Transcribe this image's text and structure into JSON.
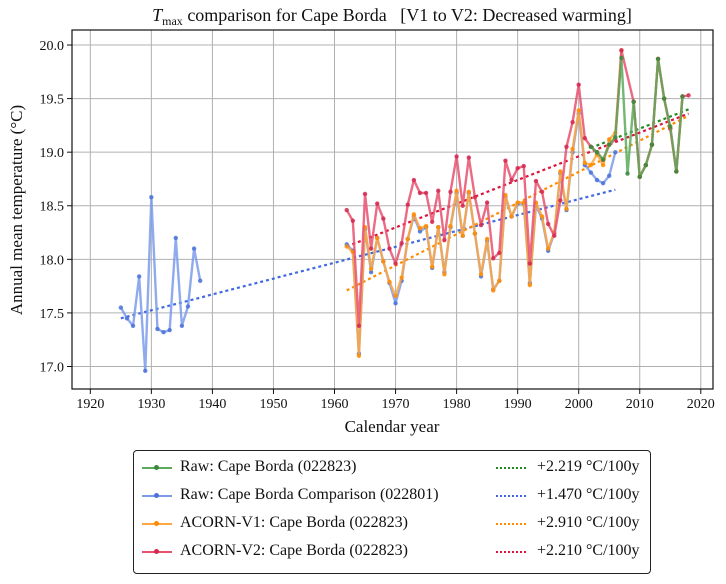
{
  "chart_data": {
    "type": "line",
    "title": {
      "T": "T",
      "sub": "max",
      "rest": " comparison for Cape Borda   [V1 to V2: Decreased warming]"
    },
    "xlabel": "Calendar year",
    "ylabel": "Annual mean temperature (°C)",
    "xlim": [
      1917,
      2022
    ],
    "ylim": [
      16.79,
      20.14
    ],
    "xticks": [
      1920,
      1930,
      1940,
      1950,
      1960,
      1970,
      1980,
      1990,
      2000,
      2010,
      2020
    ],
    "yticks": [
      17.0,
      17.5,
      18.0,
      18.5,
      19.0,
      19.5,
      20.0
    ],
    "ytick_labels": [
      "17.0",
      "17.5",
      "18.0",
      "18.5",
      "19.0",
      "19.5",
      "20.0"
    ],
    "grid": true,
    "legend_position": "below",
    "series": [
      {
        "name": "Raw: Cape Borda (022823)",
        "color": "#5aaa5a",
        "x": [
          2002,
          2003,
          2004,
          2005,
          2006,
          2007,
          2008,
          2009,
          2010,
          2011,
          2012,
          2013,
          2014,
          2015,
          2016,
          2017
        ],
        "y": [
          19.05,
          19.0,
          18.93,
          19.07,
          19.14,
          19.88,
          18.8,
          19.47,
          18.77,
          18.88,
          19.07,
          19.87,
          19.5,
          19.24,
          18.82,
          19.52
        ]
      },
      {
        "name": "Raw: Cape Borda Comparison (022801)",
        "color": "#7b9ceb",
        "x": [
          1925,
          1926,
          1927,
          1928,
          1929,
          1930,
          1931,
          1932,
          1933,
          1934,
          1935,
          1936,
          1937,
          1938,
          null,
          1962,
          1963,
          1964,
          1965,
          1966,
          1967,
          1968,
          1969,
          1970,
          1971,
          1972,
          1973,
          1974,
          1975,
          1976,
          1977,
          1978,
          1979,
          1980,
          1981,
          1982,
          1983,
          1984,
          1985,
          1986,
          1987,
          1988,
          1989,
          1990,
          1991,
          1992,
          1993,
          1994,
          1995,
          1996,
          1997,
          1998,
          1999,
          2000,
          2001,
          2002,
          2003,
          2004,
          2005,
          2006
        ],
        "y": [
          17.55,
          17.45,
          17.38,
          17.84,
          16.96,
          18.58,
          17.35,
          17.32,
          17.34,
          18.2,
          17.38,
          17.56,
          18.1,
          17.8,
          null,
          18.14,
          18.08,
          17.12,
          18.28,
          17.88,
          18.2,
          17.98,
          17.78,
          17.59,
          17.8,
          18.19,
          18.4,
          18.26,
          18.3,
          17.92,
          18.3,
          17.88,
          18.3,
          18.62,
          18.22,
          18.62,
          18.24,
          17.84,
          18.17,
          17.72,
          17.8,
          18.58,
          18.4,
          18.52,
          18.52,
          17.78,
          18.5,
          18.38,
          18.08,
          18.24,
          18.8,
          18.46,
          19.0,
          19.36,
          18.88,
          18.81,
          18.74,
          18.71,
          18.78,
          19.0
        ]
      },
      {
        "name": "ACORN-V1: Cape Borda (022823)",
        "color": "#ffa640",
        "x": [
          1962,
          1963,
          1964,
          1965,
          1966,
          1967,
          1968,
          1969,
          1970,
          1971,
          1972,
          1973,
          1974,
          1975,
          1976,
          1977,
          1978,
          1979,
          1980,
          1981,
          1982,
          1983,
          1984,
          1985,
          1986,
          1987,
          1988,
          1989,
          1990,
          1991,
          1992,
          1993,
          1994,
          1995,
          1996,
          1997,
          1998,
          1999,
          2000,
          2001,
          2002,
          2003,
          2004,
          2005,
          2006,
          2007,
          2008,
          2009,
          2010,
          2011,
          2012,
          2013,
          2014,
          2015,
          2016,
          2017
        ],
        "y": [
          18.12,
          18.07,
          17.1,
          18.3,
          17.91,
          18.2,
          17.98,
          17.79,
          17.66,
          17.83,
          18.19,
          18.42,
          18.29,
          18.31,
          17.93,
          18.3,
          17.86,
          18.31,
          18.64,
          18.22,
          18.63,
          18.24,
          17.86,
          18.19,
          17.71,
          17.8,
          18.6,
          18.4,
          18.53,
          18.53,
          17.76,
          18.53,
          18.4,
          18.1,
          18.25,
          18.82,
          18.47,
          19.03,
          19.39,
          18.9,
          18.88,
          18.98,
          18.88,
          19.12,
          19.18,
          19.95,
          null,
          19.47,
          18.77,
          18.88,
          19.07,
          19.87,
          19.5,
          19.22,
          18.82,
          19.52
        ]
      },
      {
        "name": "ACORN-V2: Cape Borda (022823)",
        "color": "#e8506e",
        "x": [
          1962,
          1963,
          1964,
          1965,
          1966,
          1967,
          1968,
          1969,
          1970,
          1971,
          1972,
          1973,
          1974,
          1975,
          1976,
          1977,
          1978,
          1979,
          1980,
          1981,
          1982,
          1983,
          1984,
          1985,
          1986,
          1987,
          1988,
          1989,
          1990,
          1991,
          1992,
          1993,
          1994,
          1995,
          1996,
          1997,
          1998,
          1999,
          2000,
          2001,
          2002,
          2003,
          2004,
          2005,
          2006,
          2007,
          2009,
          2010,
          2011,
          2012,
          2013,
          2014,
          2015,
          2016,
          2017,
          2018
        ],
        "y": [
          18.46,
          18.36,
          17.38,
          18.61,
          18.1,
          18.52,
          18.38,
          18.1,
          17.96,
          18.15,
          18.51,
          18.74,
          18.62,
          18.62,
          18.35,
          18.64,
          18.18,
          18.63,
          18.96,
          18.5,
          18.95,
          18.58,
          18.32,
          18.53,
          18.01,
          18.06,
          18.92,
          18.74,
          18.85,
          18.87,
          17.96,
          18.73,
          18.63,
          18.33,
          18.22,
          18.55,
          19.05,
          19.28,
          19.63,
          19.13,
          19.05,
          19.0,
          18.93,
          19.07,
          19.12,
          19.95,
          19.47,
          18.77,
          18.88,
          19.07,
          19.87,
          19.5,
          19.22,
          18.82,
          19.52,
          19.53
        ]
      }
    ],
    "trends": [
      {
        "label": "+2.219 °C/100y",
        "color": "#228b22",
        "x": [
          2002,
          2018
        ],
        "y": [
          19.04,
          19.4
        ]
      },
      {
        "label": "+1.470 °C/100y",
        "color": "#4169e1",
        "x": [
          1925,
          2006
        ],
        "y": [
          17.45,
          18.65
        ]
      },
      {
        "label": "+2.910 °C/100y",
        "color": "#ff8c00",
        "x": [
          1962,
          2018
        ],
        "y": [
          17.71,
          19.34
        ]
      },
      {
        "label": "+2.210 °C/100y",
        "color": "#dc143c",
        "x": [
          1962,
          2018
        ],
        "y": [
          18.12,
          19.36
        ]
      }
    ]
  }
}
